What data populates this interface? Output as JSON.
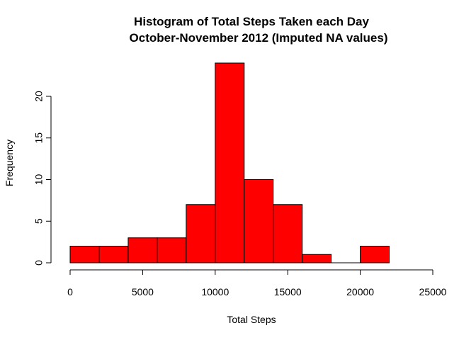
{
  "chart_data": {
    "type": "bar",
    "title_line1": "Histogram of Total Steps Taken each Day",
    "title_line2": "October-November 2012 (Imputed NA values)",
    "xlabel": "Total Steps",
    "ylabel": "Frequency",
    "bins": [
      {
        "start": 0,
        "end": 2000,
        "count": 2
      },
      {
        "start": 2000,
        "end": 4000,
        "count": 2
      },
      {
        "start": 4000,
        "end": 6000,
        "count": 3
      },
      {
        "start": 6000,
        "end": 8000,
        "count": 3
      },
      {
        "start": 8000,
        "end": 10000,
        "count": 7
      },
      {
        "start": 10000,
        "end": 12000,
        "count": 24
      },
      {
        "start": 12000,
        "end": 14000,
        "count": 10
      },
      {
        "start": 14000,
        "end": 16000,
        "count": 7
      },
      {
        "start": 16000,
        "end": 18000,
        "count": 1
      },
      {
        "start": 18000,
        "end": 20000,
        "count": 0
      },
      {
        "start": 20000,
        "end": 22000,
        "count": 2
      }
    ],
    "xlim": [
      0,
      25000
    ],
    "ylim": [
      0,
      24
    ],
    "xticks": [
      "0",
      "5000",
      "10000",
      "15000",
      "20000",
      "25000"
    ],
    "yticks": [
      "0",
      "5",
      "10",
      "15",
      "20"
    ],
    "bar_color": "#ff0000",
    "bar_border_color": "#000000",
    "grid": false,
    "legend": "none"
  }
}
